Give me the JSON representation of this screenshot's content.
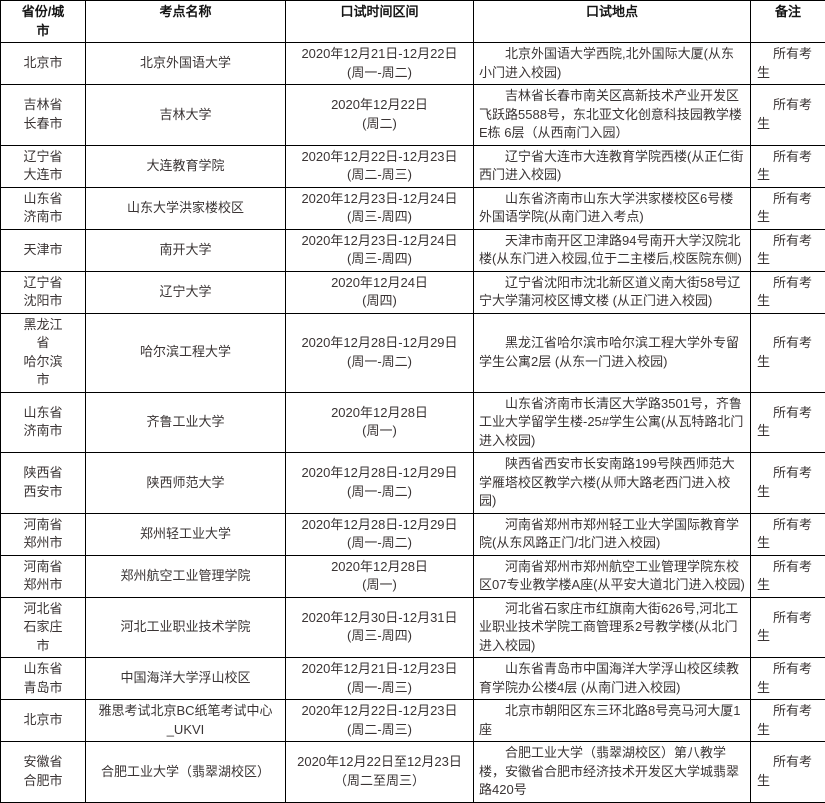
{
  "table": {
    "headers": [
      "省份/城市",
      "考点名称",
      "口试时间区间",
      "口试地点",
      "备注"
    ],
    "rows": [
      {
        "region_line1": "北京市",
        "region_line2": "",
        "center": "北京外国语大学",
        "date": "2020年12月21日-12月22日",
        "weekday": "(周一-周二)",
        "location": "北京外国语大学西院,北外国际大厦(从东小门进入校园)",
        "note": "所有考生"
      },
      {
        "region_line1": "吉林省",
        "region_line2": "长春市",
        "center": "吉林大学",
        "date": "2020年12月22日",
        "weekday": "(周二)",
        "location": "吉林省长春市南关区高新技术产业开发区飞跃路5588号，东北亚文化创意科技园教学楼E栋 6层（从西南门入园）",
        "note": "所有考生"
      },
      {
        "region_line1": "辽宁省",
        "region_line2": "大连市",
        "center": "大连教育学院",
        "date": "2020年12月22日-12月23日",
        "weekday": "(周二-周三)",
        "location": "辽宁省大连市大连教育学院西楼(从正仁街西门进入校园)",
        "note": "所有考生"
      },
      {
        "region_line1": "山东省",
        "region_line2": "济南市",
        "center": "山东大学洪家楼校区",
        "date": "2020年12月23日-12月24日",
        "weekday": "(周三-周四)",
        "location": "山东省济南市山东大学洪家楼校区6号楼外国语学院(从南门进入考点)",
        "note": "所有考生"
      },
      {
        "region_line1": "天津市",
        "region_line2": "",
        "center": "南开大学",
        "date": "2020年12月23日-12月24日",
        "weekday": "(周三-周四)",
        "location": "天津市南开区卫津路94号南开大学汉院北楼(从东门进入校园,位于二主楼后,校医院东侧)",
        "note": "所有考生"
      },
      {
        "region_line1": "辽宁省",
        "region_line2": "沈阳市",
        "center": "辽宁大学",
        "date": "2020年12月24日",
        "weekday": "(周四)",
        "location": "辽宁省沈阳市沈北新区道义南大街58号辽宁大学蒲河校区博文楼 (从正门进入校园)",
        "note": "所有考生"
      },
      {
        "region_line1": "黑龙江省",
        "region_line2": "哈尔滨市",
        "center": "哈尔滨工程大学",
        "date": "2020年12月28日-12月29日",
        "weekday": "(周一-周二)",
        "location": "黑龙江省哈尔滨市哈尔滨工程大学外专留学生公寓2层 (从东一门进入校园)",
        "note": "所有考生"
      },
      {
        "region_line1": "山东省",
        "region_line2": "济南市",
        "center": "齐鲁工业大学",
        "date": "2020年12月28日",
        "weekday": "(周一)",
        "location": "山东省济南市长清区大学路3501号，齐鲁工业大学留学生楼-25#学生公寓(从瓦特路北门进入校园)",
        "note": "所有考生"
      },
      {
        "region_line1": "陕西省",
        "region_line2": "西安市",
        "center": "陕西师范大学",
        "date": "2020年12月28日-12月29日",
        "weekday": "(周一-周二)",
        "location": "陕西省西安市长安南路199号陕西师范大学雁塔校区教学六楼(从师大路老西门进入校园)",
        "note": "所有考生"
      },
      {
        "region_line1": "河南省",
        "region_line2": "郑州市",
        "center": "郑州轻工业大学",
        "date": "2020年12月28日-12月29日",
        "weekday": "(周一-周二)",
        "location": "河南省郑州市郑州轻工业大学国际教育学院(从东风路正门/北门进入校园)",
        "note": "所有考生"
      },
      {
        "region_line1": "河南省",
        "region_line2": "郑州市",
        "center": "郑州航空工业管理学院",
        "date": "2020年12月28日",
        "weekday": "(周一)",
        "location": "河南省郑州市郑州航空工业管理学院东校区07专业教学楼A座(从平安大道北门进入校园)",
        "note": "所有考生"
      },
      {
        "region_line1": "河北省",
        "region_line2": "石家庄市",
        "center": "河北工业职业技术学院",
        "date": "2020年12月30日-12月31日",
        "weekday": "(周三-周四)",
        "location": "河北省石家庄市红旗南大街626号,河北工业职业技术学院工商管理系2号教学楼(从北门进入校园)",
        "note": "所有考生"
      },
      {
        "region_line1": "山东省",
        "region_line2": "青岛市",
        "center": "中国海洋大学浮山校区",
        "date": "2020年12月21日-12月23日",
        "weekday": "(周一-周三)",
        "location": "山东省青岛市中国海洋大学浮山校区续教育学院办公楼4层 (从南门进入校园)",
        "note": "所有考生"
      },
      {
        "region_line1": "北京市",
        "region_line2": "",
        "center": "雅思考试北京BC纸笔考试中心_UKVI",
        "date": "2020年12月22日-12月23日",
        "weekday": "(周二-周三)",
        "location": "北京市朝阳区东三环北路8号亮马河大厦1座",
        "note": "所有考生"
      },
      {
        "region_line1": "安徽省",
        "region_line2": "合肥市",
        "center": "合肥工业大学（翡翠湖校区）",
        "date": "2020年12月22日至12月23日",
        "weekday": "（周二至周三）",
        "location": "合肥工业大学（翡翠湖校区）第八教学楼，安徽省合肥市经济技术开发区大学城翡翠路420号",
        "note": "所有考生"
      }
    ]
  }
}
